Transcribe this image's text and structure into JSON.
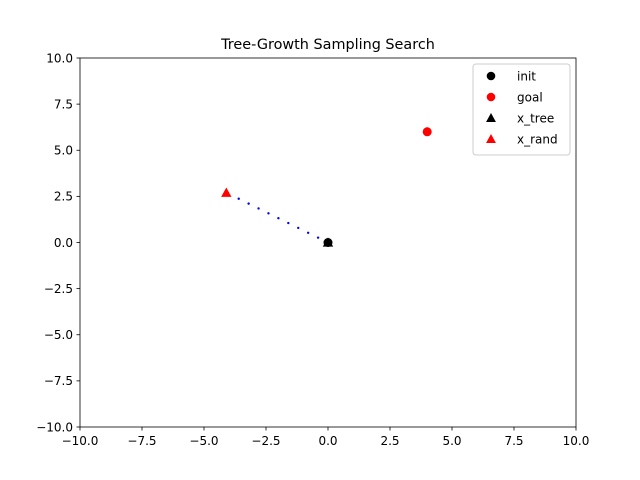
{
  "chart_data": {
    "type": "scatter",
    "title": "Tree-Growth Sampling Search",
    "xlabel": "",
    "ylabel": "",
    "xlim": [
      -10,
      10
    ],
    "ylim": [
      -10,
      10
    ],
    "xticks": [
      -10,
      -7.5,
      -5,
      -2.5,
      0,
      2.5,
      5,
      7.5,
      10
    ],
    "yticks": [
      -10,
      -7.5,
      -5,
      -2.5,
      0,
      2.5,
      5,
      7.5,
      10
    ],
    "xtick_labels": [
      "−10.0",
      "−7.5",
      "−5.0",
      "−2.5",
      "0.0",
      "2.5",
      "5.0",
      "7.5",
      "10.0"
    ],
    "ytick_labels": [
      "−10.0",
      "−7.5",
      "−5.0",
      "−2.5",
      "0.0",
      "2.5",
      "5.0",
      "7.5",
      "10.0"
    ],
    "grid": false,
    "legend_position": "top-right",
    "series": [
      {
        "name": "init",
        "marker": "circle",
        "color": "#000000",
        "points": [
          [
            0,
            0
          ]
        ]
      },
      {
        "name": "goal",
        "marker": "circle",
        "color": "#ff0000",
        "points": [
          [
            4,
            6
          ]
        ]
      },
      {
        "name": "x_tree",
        "marker": "triangle",
        "color": "#000000",
        "points": [
          [
            0,
            0
          ]
        ]
      },
      {
        "name": "x_rand",
        "marker": "triangle",
        "color": "#ff0000",
        "points": [
          [
            -4.1,
            2.7
          ]
        ]
      }
    ],
    "extension_line": {
      "style": "dotted",
      "color": "#0000ff",
      "points": [
        [
          0,
          0
        ],
        [
          -0.4,
          0.263
        ],
        [
          -0.8,
          0.527
        ],
        [
          -1.2,
          0.79
        ],
        [
          -1.6,
          1.054
        ],
        [
          -2.0,
          1.317
        ],
        [
          -2.4,
          1.58
        ],
        [
          -2.8,
          1.844
        ],
        [
          -3.2,
          2.107
        ],
        [
          -3.6,
          2.371
        ]
      ]
    }
  }
}
